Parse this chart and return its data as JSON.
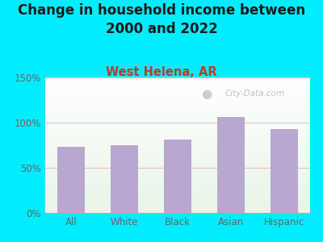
{
  "title": "Change in household income between\n2000 and 2022",
  "subtitle": "West Helena, AR",
  "categories": [
    "All",
    "White",
    "Black",
    "Asian",
    "Hispanic"
  ],
  "values": [
    73,
    75,
    81,
    106,
    93
  ],
  "bar_color": "#b8a8d0",
  "background_outer": "#00eeff",
  "title_color": "#1a1a1a",
  "subtitle_color": "#c0392b",
  "tick_color": "#666666",
  "grid_color": "#e8b0b0",
  "watermark": "City-Data.com",
  "ylim": [
    0,
    150
  ],
  "yticks": [
    0,
    50,
    100,
    150
  ],
  "title_fontsize": 12,
  "subtitle_fontsize": 10.5
}
